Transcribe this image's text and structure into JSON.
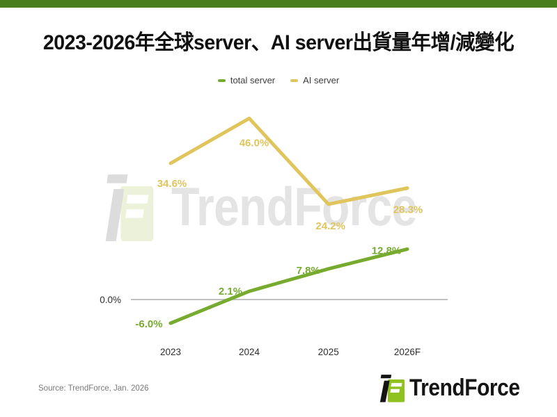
{
  "page": {
    "source_note": "Source: TrendForce, Jan. 2026"
  },
  "brand": {
    "logo_text": "TrendForce",
    "watermark_text": "TrendForce",
    "logo_icon": "trendforce-f-mark",
    "logo_green": "#8fc11f",
    "logo_black": "#141414",
    "watermark_gray": "#dcdcdc",
    "watermark_pale_green": "#ecf2da",
    "accent_bar_color": "#4a7e1d"
  },
  "chart_data": {
    "type": "line",
    "title": "2023-2026年全球server、AI server出貨量年增/減變化",
    "categories": [
      "2023",
      "2024",
      "2025",
      "2026F"
    ],
    "series": [
      {
        "name": "total server",
        "color": "#76ab30",
        "values": [
          -6.0,
          2.1,
          7.8,
          12.8
        ],
        "labels": [
          "-6.0%",
          "2.1%",
          "7.8%",
          "12.8%"
        ]
      },
      {
        "name": "AI server",
        "color": "#e0c45c",
        "values": [
          34.6,
          46.0,
          24.2,
          28.3
        ],
        "labels": [
          "34.6%",
          "46.0%",
          "24.2%",
          "28.3%"
        ]
      }
    ],
    "baseline": {
      "value": 0.0,
      "label": "0.0%"
    },
    "ylim": [
      -12,
      52
    ],
    "grid": false,
    "legend_position": "top",
    "axis_text_color": "#2e2e2e",
    "baseline_line_color": "#ababab"
  }
}
